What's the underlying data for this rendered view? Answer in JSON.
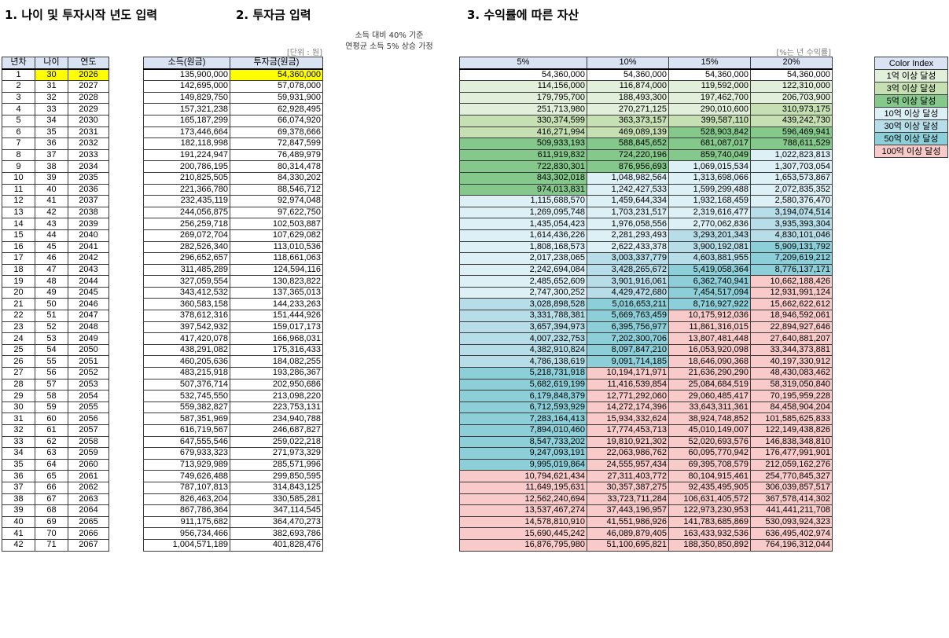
{
  "titles": {
    "section1": "1. 나이 및 투자시작 년도 입력",
    "section2": "2. 투자금 입력",
    "section3": "3. 수익률에 따른 자산"
  },
  "notes": {
    "unit_won": "[단위 : 원]",
    "assumption_line1": "소득 대비 40% 기준",
    "assumption_line2": "연평균 소득 5% 상승 가정",
    "rate_unit": "[%는 년 수익률]"
  },
  "table1": {
    "headers": [
      "년차",
      "나이",
      "연도"
    ],
    "start_age": 30,
    "start_year": 2026
  },
  "table2": {
    "headers": [
      "소득(원금)",
      "투자금(원금)"
    ],
    "income": [
      "135,900,000",
      "142,695,000",
      "149,829,750",
      "157,321,238",
      "165,187,299",
      "173,446,664",
      "182,118,998",
      "191,224,947",
      "200,786,195",
      "210,825,505",
      "221,366,780",
      "232,435,119",
      "244,056,875",
      "256,259,718",
      "269,072,704",
      "282,526,340",
      "296,652,657",
      "311,485,289",
      "327,059,554",
      "343,412,532",
      "360,583,158",
      "378,612,316",
      "397,542,932",
      "417,420,078",
      "438,291,082",
      "460,205,636",
      "483,215,918",
      "507,376,714",
      "532,745,550",
      "559,382,827",
      "587,351,969",
      "616,719,567",
      "647,555,546",
      "679,933,323",
      "713,929,989",
      "749,626,488",
      "787,107,813",
      "826,463,204",
      "867,786,364",
      "911,175,682",
      "956,734,466",
      "1,004,571,189"
    ],
    "investment": [
      "54,360,000",
      "57,078,000",
      "59,931,900",
      "62,928,495",
      "66,074,920",
      "69,378,666",
      "72,847,599",
      "76,489,979",
      "80,314,478",
      "84,330,202",
      "88,546,712",
      "92,974,048",
      "97,622,750",
      "102,503,887",
      "107,629,082",
      "113,010,536",
      "118,661,063",
      "124,594,116",
      "130,823,822",
      "137,365,013",
      "144,233,263",
      "151,444,926",
      "159,017,173",
      "166,968,031",
      "175,316,433",
      "184,082,255",
      "193,286,367",
      "202,950,686",
      "213,098,220",
      "223,753,131",
      "234,940,788",
      "246,687,827",
      "259,022,218",
      "271,973,329",
      "285,571,996",
      "299,850,595",
      "314,843,125",
      "330,585,281",
      "347,114,545",
      "364,470,273",
      "382,693,786",
      "401,828,476"
    ]
  },
  "table3": {
    "headers": [
      "5%",
      "10%",
      "15%",
      "20%"
    ],
    "r5": [
      "54,360,000",
      "114,156,000",
      "179,795,700",
      "251,713,980",
      "330,374,599",
      "416,271,994",
      "509,933,193",
      "611,919,832",
      "722,830,301",
      "843,302,018",
      "974,013,831",
      "1,115,688,570",
      "1,269,095,748",
      "1,435,054,423",
      "1,614,436,226",
      "1,808,168,573",
      "2,017,238,065",
      "2,242,694,084",
      "2,485,652,609",
      "2,747,300,252",
      "3,028,898,528",
      "3,331,788,381",
      "3,657,394,973",
      "4,007,232,753",
      "4,382,910,824",
      "4,786,138,619",
      "5,218,731,918",
      "5,682,619,199",
      "6,179,848,379",
      "6,712,593,929",
      "7,283,164,413",
      "7,894,010,460",
      "8,547,733,202",
      "9,247,093,191",
      "9,995,019,864",
      "10,794,621,434",
      "11,649,195,631",
      "12,562,240,694",
      "13,537,467,274",
      "14,578,810,910",
      "15,690,445,242",
      "16,876,795,980"
    ],
    "r10": [
      "54,360,000",
      "116,874,000",
      "188,493,300",
      "270,271,125",
      "363,373,157",
      "469,089,139",
      "588,845,652",
      "724,220,196",
      "876,956,693",
      "1,048,982,564",
      "1,242,427,533",
      "1,459,644,334",
      "1,703,231,517",
      "1,976,058,556",
      "2,281,293,493",
      "2,622,433,378",
      "3,003,337,779",
      "3,428,265,672",
      "3,901,916,061",
      "4,429,472,680",
      "5,016,653,211",
      "5,669,763,459",
      "6,395,756,977",
      "7,202,300,706",
      "8,097,847,210",
      "9,091,714,185",
      "10,194,171,971",
      "11,416,539,854",
      "12,771,292,060",
      "14,272,174,396",
      "15,934,332,624",
      "17,774,453,713",
      "19,810,921,302",
      "22,063,986,762",
      "24,555,957,434",
      "27,311,403,772",
      "30,357,387,275",
      "33,723,711,284",
      "37,443,196,957",
      "41,551,986,926",
      "46,089,879,405",
      "51,100,695,821"
    ],
    "r15": [
      "54,360,000",
      "119,592,000",
      "197,462,700",
      "290,010,600",
      "399,587,110",
      "528,903,842",
      "681,087,017",
      "859,740,049",
      "1,069,015,534",
      "1,313,698,066",
      "1,599,299,488",
      "1,932,168,459",
      "2,319,616,477",
      "2,770,062,836",
      "3,293,201,343",
      "3,900,192,081",
      "4,603,881,955",
      "5,419,058,364",
      "6,362,740,941",
      "7,454,517,094",
      "8,716,927,922",
      "10,175,912,036",
      "11,861,316,015",
      "13,807,481,448",
      "16,053,920,098",
      "18,646,090,368",
      "21,636,290,290",
      "25,084,684,519",
      "29,060,485,417",
      "33,643,311,361",
      "38,924,748,852",
      "45,010,149,007",
      "52,020,693,576",
      "60,095,770,942",
      "69,395,708,579",
      "80,104,915,461",
      "92,435,495,905",
      "106,631,405,572",
      "122,973,230,953",
      "141,783,685,869",
      "163,433,932,536",
      "188,350,850,892"
    ],
    "r20": [
      "54,360,000",
      "122,310,000",
      "206,703,900",
      "310,973,175",
      "439,242,730",
      "596,469,941",
      "788,611,529",
      "1,022,823,813",
      "1,307,703,054",
      "1,653,573,867",
      "2,072,835,352",
      "2,580,376,470",
      "3,194,074,514",
      "3,935,393,304",
      "4,830,101,046",
      "5,909,131,792",
      "7,209,619,212",
      "8,776,137,171",
      "10,662,188,426",
      "12,931,991,124",
      "15,662,622,612",
      "18,946,592,061",
      "22,894,927,646",
      "27,640,881,207",
      "33,344,373,881",
      "40,197,330,912",
      "48,430,083,462",
      "58,319,050,840",
      "70,195,959,228",
      "84,458,904,204",
      "101,585,625,833",
      "122,149,438,826",
      "146,838,348,810",
      "176,477,991,901",
      "212,059,162,276",
      "254,770,845,327",
      "306,039,857,517",
      "367,578,414,302",
      "441,441,211,708",
      "530,093,924,323",
      "636,495,402,974",
      "764,196,312,044"
    ]
  },
  "legend": {
    "header": "Color Index",
    "items": [
      {
        "label": "1억 이상 달성",
        "color": "#e2efda"
      },
      {
        "label": "3억 이상 달성",
        "color": "#c6e0b4"
      },
      {
        "label": "5억 이상 달성",
        "color": "#84c98b"
      },
      {
        "label": "10억 이상 달성",
        "color": "#ddf0f6"
      },
      {
        "label": "30억 이상 달성",
        "color": "#b6dde8"
      },
      {
        "label": "50억 이상 달성",
        "color": "#8ccfd9"
      },
      {
        "label": "100억 이상 달성",
        "color": "#f8cbca"
      }
    ]
  }
}
